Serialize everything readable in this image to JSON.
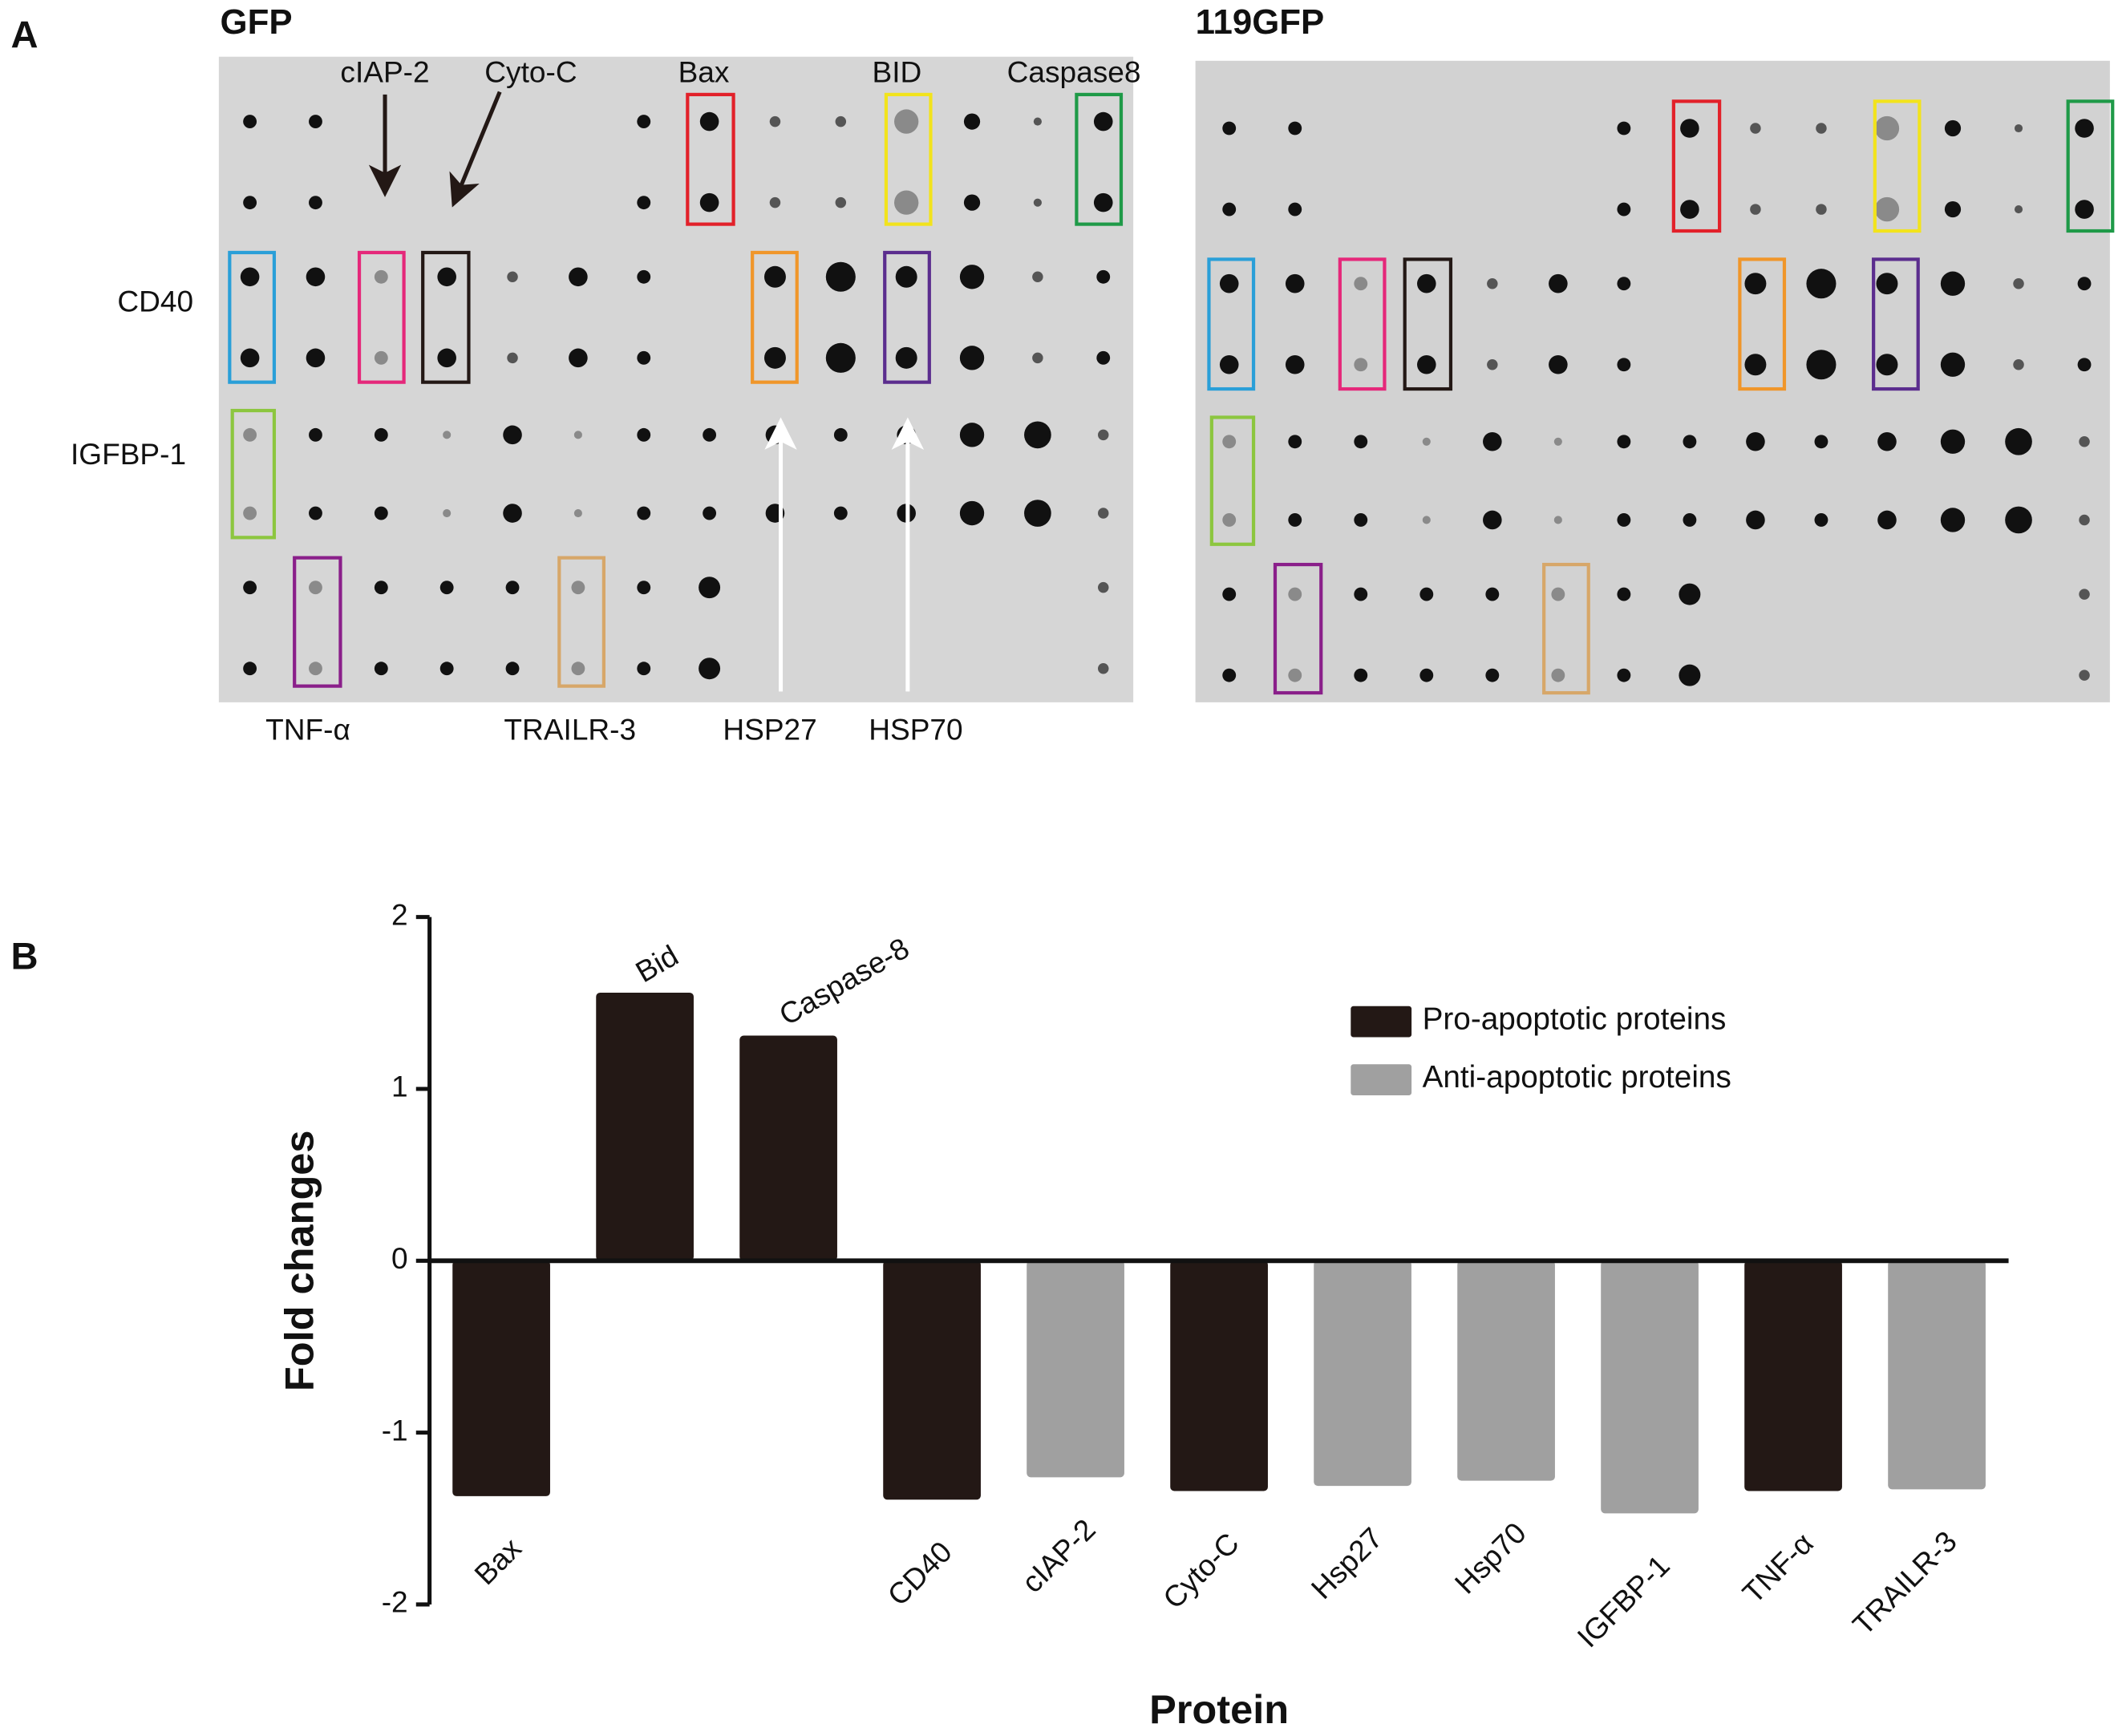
{
  "panel_a": {
    "label": "A",
    "left_title": "GFP",
    "right_title": "119GFP",
    "labels": [
      "cIAP-2",
      "Cyto-C",
      "Bax",
      "BID",
      "Caspase8",
      "CD40",
      "IGFBP-1",
      "TNF-α",
      "TRAILR-3",
      "HSP27",
      "HSP70"
    ]
  },
  "panel_b_label": "B",
  "chart_data": {
    "type": "bar",
    "ylabel": "Fold changes",
    "xlabel": "Protein",
    "categories": [
      "Bax",
      "Bid",
      "Caspase-8",
      "CD40",
      "cIAP-2",
      "Cyto-C",
      "Hsp27",
      "Hsp70",
      "IGFBP-1",
      "TNF-α",
      "TRAILR-3"
    ],
    "series": [
      {
        "name": "Pro-apoptotic proteins",
        "color": "#231815",
        "values": [
          -1.37,
          1.56,
          1.31,
          -1.39,
          null,
          -1.34,
          null,
          null,
          null,
          -1.34,
          null
        ]
      },
      {
        "name": "Anti-apoptotic proteins",
        "color": "#a0a0a0",
        "values": [
          null,
          null,
          null,
          null,
          -1.26,
          null,
          -1.31,
          -1.28,
          -1.47,
          null,
          -1.33
        ]
      }
    ],
    "ylim": [
      -2,
      2
    ],
    "yticks": [
      -2,
      -1,
      0,
      1,
      2
    ],
    "legend": "upper right"
  }
}
